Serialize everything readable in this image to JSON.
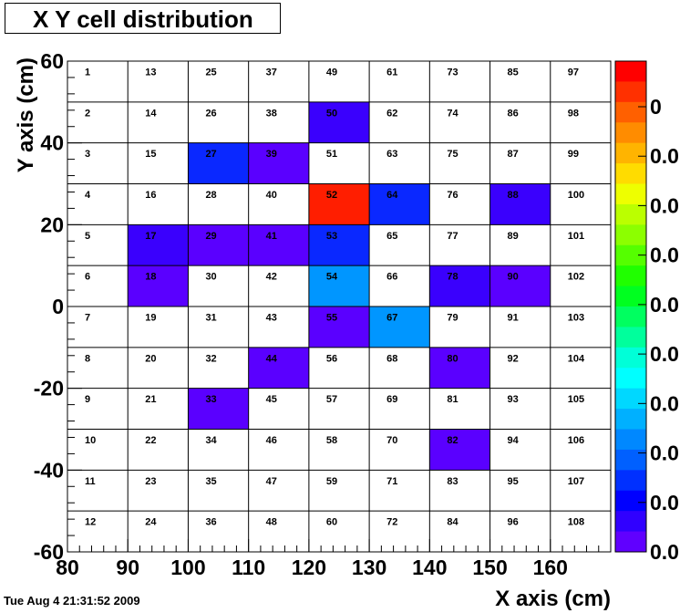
{
  "title": "X Y cell distribution",
  "timestamp": "Tue Aug  4 21:31:52 2009",
  "chart_data": {
    "type": "heatmap",
    "title": "X Y cell distribution",
    "xlabel": "X axis (cm)",
    "ylabel": "Y axis (cm)",
    "xlim": [
      80,
      170
    ],
    "ylim": [
      -60,
      60
    ],
    "x_ticks": [
      "80",
      "90",
      "100",
      "110",
      "120",
      "130",
      "140",
      "150",
      "160"
    ],
    "y_ticks": [
      "60",
      "40",
      "20",
      "0",
      "-20",
      "-40",
      "-60"
    ],
    "x_edges": [
      80,
      90,
      100,
      110,
      120,
      130,
      140,
      150,
      160,
      170
    ],
    "y_edges": [
      60,
      50,
      40,
      30,
      20,
      10,
      0,
      -10,
      -20,
      -30,
      -40,
      -50,
      -60
    ],
    "cell_ids": [
      [
        1,
        13,
        25,
        37,
        49,
        61,
        73,
        85,
        97
      ],
      [
        2,
        14,
        26,
        38,
        50,
        62,
        74,
        86,
        98
      ],
      [
        3,
        15,
        27,
        39,
        51,
        63,
        75,
        87,
        99
      ],
      [
        4,
        16,
        28,
        40,
        52,
        64,
        76,
        88,
        100
      ],
      [
        5,
        17,
        29,
        41,
        53,
        65,
        77,
        89,
        101
      ],
      [
        6,
        18,
        30,
        42,
        54,
        66,
        78,
        90,
        102
      ],
      [
        7,
        19,
        31,
        43,
        55,
        67,
        79,
        91,
        103
      ],
      [
        8,
        20,
        32,
        44,
        56,
        68,
        80,
        92,
        104
      ],
      [
        9,
        21,
        33,
        45,
        57,
        69,
        81,
        93,
        105
      ],
      [
        10,
        22,
        34,
        46,
        58,
        70,
        82,
        94,
        106
      ],
      [
        11,
        23,
        35,
        47,
        59,
        71,
        83,
        95,
        107
      ],
      [
        12,
        24,
        36,
        48,
        60,
        72,
        84,
        96,
        108
      ]
    ],
    "cell_colors": {
      "50": "#3a00fd",
      "27": "#0a28ff",
      "39": "#5a00ff",
      "52": "#ff1e00",
      "64": "#0a28ff",
      "88": "#3a00fd",
      "17": "#3a00fd",
      "29": "#5a00ff",
      "41": "#5a00ff",
      "53": "#0a28ff",
      "18": "#5a00ff",
      "54": "#0096ff",
      "78": "#3a00fd",
      "90": "#5a00ff",
      "55": "#5a00ff",
      "67": "#0096ff",
      "44": "#5a00ff",
      "80": "#5a00ff",
      "33": "#5a00ff",
      "82": "#5a00ff"
    },
    "palette_labels": [
      "0.0",
      "0.0",
      "0.0",
      "0.0",
      "0.0",
      "0.0",
      "0.0",
      "0.0",
      "0.0",
      "0"
    ],
    "palette_colors": [
      "#ff0000",
      "#ff3000",
      "#ff6000",
      "#ff8c00",
      "#ffb400",
      "#ffdc00",
      "#eeff00",
      "#bbff00",
      "#8cff00",
      "#55ff00",
      "#20ff00",
      "#00ff20",
      "#00ff60",
      "#00ff9c",
      "#00ffd8",
      "#00ffff",
      "#00d8ff",
      "#00b0ff",
      "#0088ff",
      "#0060ff",
      "#0030ff",
      "#0000ff",
      "#3000ff",
      "#6000ff"
    ]
  }
}
